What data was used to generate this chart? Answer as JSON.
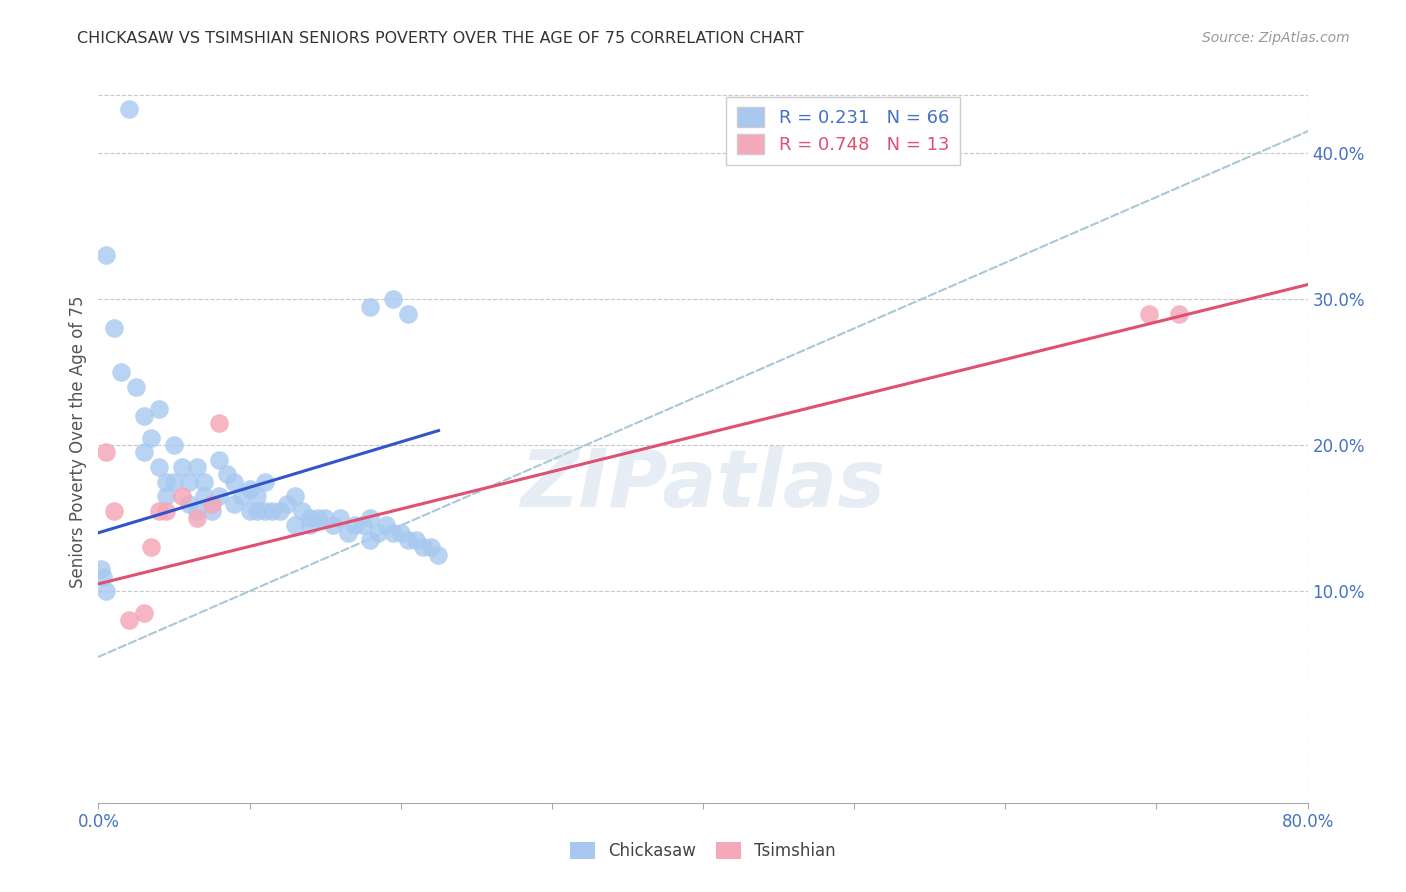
{
  "title": "CHICKASAW VS TSIMSHIAN SENIORS POVERTY OVER THE AGE OF 75 CORRELATION CHART",
  "source": "Source: ZipAtlas.com",
  "ylabel": "Seniors Poverty Over the Age of 75",
  "xlim": [
    0.0,
    0.8
  ],
  "ylim": [
    -0.045,
    0.45
  ],
  "legend_blue_label": "R = 0.231   N = 66",
  "legend_pink_label": "R = 0.748   N = 13",
  "watermark": "ZIPatlas",
  "chickasaw_color": "#a8c8f0",
  "tsimshian_color": "#f5a8b8",
  "trendline_blue_color": "#3355cc",
  "trendline_pink_color": "#e05070",
  "trendline_dashed_color": "#a8c8d8",
  "chickasaw_x": [
    0.02,
    0.005,
    0.01,
    0.015,
    0.025,
    0.03,
    0.03,
    0.035,
    0.04,
    0.04,
    0.045,
    0.045,
    0.05,
    0.05,
    0.055,
    0.06,
    0.06,
    0.065,
    0.065,
    0.07,
    0.07,
    0.075,
    0.08,
    0.08,
    0.085,
    0.09,
    0.09,
    0.095,
    0.1,
    0.1,
    0.105,
    0.105,
    0.11,
    0.11,
    0.115,
    0.12,
    0.125,
    0.13,
    0.13,
    0.135,
    0.14,
    0.14,
    0.145,
    0.15,
    0.155,
    0.16,
    0.165,
    0.17,
    0.175,
    0.18,
    0.18,
    0.185,
    0.19,
    0.195,
    0.2,
    0.205,
    0.21,
    0.215,
    0.22,
    0.225,
    0.002,
    0.003,
    0.005,
    0.18,
    0.195,
    0.205
  ],
  "chickasaw_y": [
    0.43,
    0.33,
    0.28,
    0.25,
    0.24,
    0.22,
    0.195,
    0.205,
    0.225,
    0.185,
    0.175,
    0.165,
    0.2,
    0.175,
    0.185,
    0.175,
    0.16,
    0.185,
    0.155,
    0.165,
    0.175,
    0.155,
    0.19,
    0.165,
    0.18,
    0.175,
    0.16,
    0.165,
    0.17,
    0.155,
    0.165,
    0.155,
    0.175,
    0.155,
    0.155,
    0.155,
    0.16,
    0.165,
    0.145,
    0.155,
    0.15,
    0.145,
    0.15,
    0.15,
    0.145,
    0.15,
    0.14,
    0.145,
    0.145,
    0.15,
    0.135,
    0.14,
    0.145,
    0.14,
    0.14,
    0.135,
    0.135,
    0.13,
    0.13,
    0.125,
    0.115,
    0.11,
    0.1,
    0.295,
    0.3,
    0.29
  ],
  "tsimshian_x": [
    0.005,
    0.01,
    0.02,
    0.03,
    0.035,
    0.04,
    0.045,
    0.055,
    0.065,
    0.075,
    0.08,
    0.695,
    0.715
  ],
  "tsimshian_y": [
    0.195,
    0.155,
    0.08,
    0.085,
    0.13,
    0.155,
    0.155,
    0.165,
    0.15,
    0.16,
    0.215,
    0.29,
    0.29
  ],
  "blue_trend_x": [
    0.0,
    0.225
  ],
  "blue_trend_y": [
    0.14,
    0.21
  ],
  "pink_trend_x": [
    0.0,
    0.8
  ],
  "pink_trend_y": [
    0.105,
    0.31
  ],
  "dashed_trend_x": [
    0.0,
    0.8
  ],
  "dashed_trend_y": [
    0.055,
    0.415
  ]
}
